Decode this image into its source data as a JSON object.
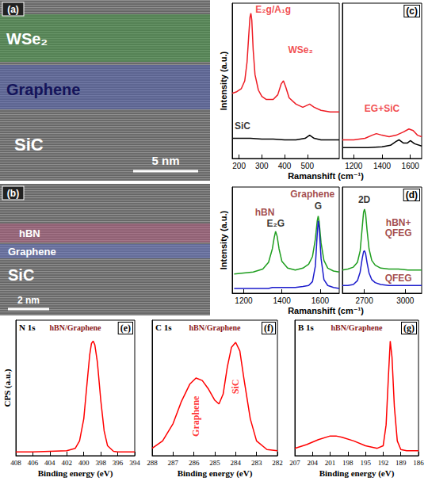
{
  "images": [
    {
      "panel": "(a)",
      "layers": [
        "WSe₂",
        "Graphene",
        "SiC"
      ],
      "scale_bar": "5 nm"
    },
    {
      "panel": "(b)",
      "layers": [
        "hBN",
        "Graphene",
        "SiC"
      ],
      "scale_bar": "2 nm"
    }
  ],
  "chart_data": [
    {
      "type": "line",
      "panel": "(c)",
      "xlabel": "Ramanshift (cm⁻¹)",
      "ylabel": "Intensity (a.u.)",
      "xlim": [
        [
          170,
          640
        ],
        [
          1120,
          1680
        ]
      ],
      "xticks": [
        [
          200,
          300,
          400,
          500
        ],
        [
          1200,
          1400,
          1600
        ]
      ],
      "ylim": [
        0,
        10
      ],
      "tick_labels": "x",
      "grid": false,
      "series": [
        {
          "color": "#ee1c24",
          "x": [
            170,
            190,
            210,
            225,
            235,
            242,
            248,
            252,
            256,
            262,
            270,
            285,
            300,
            320,
            350,
            370,
            385,
            395,
            405,
            420,
            450,
            480,
            510,
            530,
            560,
            600,
            640,
            1120,
            1200,
            1280,
            1330,
            1360,
            1400,
            1450,
            1500,
            1550,
            1590,
            1620,
            1650,
            1680
          ],
          "values": [
            4.2,
            4.3,
            4.5,
            5.0,
            6.2,
            7.8,
            9.1,
            9.35,
            8.9,
            7.0,
            5.4,
            4.4,
            4.0,
            3.8,
            3.8,
            4.1,
            4.8,
            5.0,
            4.6,
            3.9,
            3.5,
            3.3,
            3.5,
            3.3,
            3.1,
            3.0,
            3.0,
            1.2,
            1.2,
            1.3,
            1.5,
            1.6,
            1.5,
            1.4,
            1.5,
            1.7,
            1.9,
            1.8,
            1.5,
            1.4
          ]
        },
        {
          "color": "#000000",
          "x": [
            170,
            200,
            250,
            300,
            350,
            400,
            450,
            490,
            510,
            530,
            560,
            600,
            640,
            1120,
            1200,
            1300,
            1400,
            1460,
            1500,
            1520,
            1550,
            1580,
            1600,
            1630,
            1680
          ],
          "values": [
            1.3,
            1.3,
            1.3,
            1.25,
            1.25,
            1.2,
            1.2,
            1.3,
            1.5,
            1.3,
            1.2,
            1.2,
            1.2,
            0.7,
            0.7,
            0.7,
            0.75,
            0.85,
            1.1,
            1.2,
            1.0,
            1.0,
            1.15,
            0.95,
            0.8
          ]
        }
      ],
      "annotations": [
        {
          "text": "E₂g/A₁g",
          "x": 350,
          "y": 9.6,
          "color": "#ee1c24"
        },
        {
          "text": "WSe₂",
          "x": 470,
          "y": 7.0,
          "color": "#ee1c24"
        },
        {
          "text": "SiC",
          "x": 215,
          "y": 2.1,
          "color": "#000000"
        },
        {
          "text": "EG+SiC",
          "x": 1400,
          "y": 3.2,
          "color": "#ee1c24"
        }
      ]
    },
    {
      "type": "line",
      "panel": "(d)",
      "xlabel": "Ramanshift (cm⁻¹)",
      "ylabel": "Intensity (a.u.)",
      "xlim": [
        [
          1140,
          1700
        ],
        [
          2540,
          3120
        ]
      ],
      "xticks": [
        [
          1200,
          1400,
          1600
        ],
        [
          2700,
          3000
        ]
      ],
      "ylim": [
        0,
        11
      ],
      "tick_labels": "x",
      "grid": false,
      "series": [
        {
          "color": "#1f9e1f",
          "x": [
            1150,
            1200,
            1250,
            1300,
            1330,
            1350,
            1360,
            1367,
            1375,
            1385,
            1400,
            1430,
            1470,
            1510,
            1540,
            1560,
            1575,
            1585,
            1590,
            1595,
            1605,
            1620,
            1640,
            1670,
            1700,
            2540,
            2580,
            2620,
            2650,
            2670,
            2685,
            2695,
            2702,
            2710,
            2720,
            2735,
            2755,
            2780,
            2820,
            2880,
            2950,
            3020,
            3080,
            3120
          ],
          "values": [
            2.0,
            2.1,
            2.2,
            2.5,
            3.2,
            4.6,
            5.8,
            6.4,
            5.9,
            4.6,
            3.3,
            2.6,
            2.4,
            2.6,
            3.0,
            3.8,
            5.6,
            7.5,
            8.0,
            7.4,
            5.2,
            3.4,
            2.6,
            2.3,
            2.2,
            2.4,
            2.5,
            2.7,
            3.2,
            4.4,
            6.8,
            8.4,
            8.7,
            8.2,
            6.6,
            4.6,
            3.4,
            2.9,
            2.6,
            2.5,
            2.5,
            2.4,
            2.4,
            2.4
          ]
        },
        {
          "color": "#1c1ccc",
          "x": [
            1150,
            1200,
            1250,
            1300,
            1330,
            1350,
            1360,
            1367,
            1375,
            1385,
            1400,
            1430,
            1470,
            1510,
            1540,
            1560,
            1575,
            1585,
            1590,
            1595,
            1605,
            1620,
            1640,
            1670,
            1700,
            2540,
            2580,
            2620,
            2650,
            2670,
            2685,
            2695,
            2702,
            2710,
            2720,
            2735,
            2755,
            2780,
            2820,
            2880,
            2950,
            3020,
            3080,
            3120
          ],
          "values": [
            0.5,
            0.5,
            0.5,
            0.5,
            0.5,
            0.6,
            0.6,
            0.6,
            0.6,
            0.6,
            0.6,
            0.6,
            0.6,
            0.7,
            0.8,
            1.2,
            2.8,
            6.2,
            7.5,
            6.8,
            3.6,
            1.4,
            0.8,
            0.6,
            0.5,
            0.8,
            0.8,
            0.9,
            1.3,
            2.2,
            3.6,
            4.3,
            4.4,
            4.1,
            3.2,
            2.1,
            1.4,
            1.1,
            0.9,
            0.8,
            0.8,
            0.8,
            0.8,
            0.8
          ]
        }
      ],
      "annotations": [
        {
          "text": "hBN",
          "x": 1310,
          "y": 8.4,
          "color": "#8b1a1a"
        },
        {
          "text": "E₂G",
          "x": 1367,
          "y": 7.2,
          "color": "#000000"
        },
        {
          "text": "Graphene",
          "x": 1560,
          "y": 10.3,
          "color": "#8b1a1a"
        },
        {
          "text": "G",
          "x": 1590,
          "y": 9.0,
          "color": "#000000"
        },
        {
          "text": "2D",
          "x": 2700,
          "y": 9.7,
          "color": "#000000"
        },
        {
          "text": "hBN+",
          "x": 2950,
          "y": 7.3,
          "color": "#8b1a1a"
        },
        {
          "text": "QFEG",
          "x": 2950,
          "y": 6.2,
          "color": "#8b1a1a"
        },
        {
          "text": "QFEG",
          "x": 2950,
          "y": 1.55,
          "color": "#8b1a1a"
        }
      ]
    },
    {
      "type": "line",
      "panel": "(e)",
      "title": "N 1s",
      "subtitle": "hBN/Graphene",
      "xlabel": "Binding energy (eV)",
      "ylabel": "CPS (a.u.)",
      "xlim": [
        408,
        394
      ],
      "xticks": [
        408,
        406,
        404,
        402,
        400,
        398,
        396,
        394
      ],
      "ylim": [
        0,
        11
      ],
      "tick_labels": "x",
      "grid": false,
      "series": [
        {
          "color": "#ff0000",
          "x": [
            408,
            406,
            404,
            402,
            401,
            400.5,
            400,
            399.6,
            399.3,
            399.1,
            398.9,
            398.7,
            398.4,
            398,
            397.6,
            397.2,
            396.5,
            396,
            394
          ],
          "values": [
            0.3,
            0.3,
            0.35,
            0.4,
            0.6,
            1.2,
            3.0,
            6.0,
            8.2,
            9.1,
            9.3,
            9.0,
            7.6,
            4.5,
            2.0,
            0.8,
            0.35,
            0.3,
            0.3
          ]
        }
      ]
    },
    {
      "type": "line",
      "panel": "(f)",
      "title": "C 1s",
      "subtitle": "hBN/Graphene",
      "xlabel": "Binding energy (eV)",
      "xlim": [
        288,
        282
      ],
      "xticks": [
        288,
        287,
        286,
        285,
        284,
        283,
        282
      ],
      "ylim": [
        0,
        11
      ],
      "tick_labels": "x",
      "grid": false,
      "series": [
        {
          "color": "#ff0000",
          "x": [
            288,
            287.5,
            287,
            286.6,
            286.2,
            285.9,
            285.6,
            285.3,
            285,
            284.8,
            284.6,
            284.4,
            284.2,
            284.0,
            283.8,
            283.6,
            283.3,
            283,
            282.5,
            282
          ],
          "values": [
            0.6,
            1.2,
            2.6,
            4.4,
            5.8,
            6.3,
            6.1,
            5.4,
            4.5,
            4.2,
            5.0,
            7.2,
            8.8,
            9.2,
            8.5,
            6.2,
            3.0,
            1.2,
            0.5,
            0.4
          ]
        }
      ],
      "annotations": [
        {
          "text": "Graphene",
          "x": 285.9,
          "y": 3.2,
          "color": "#ff0000",
          "orientation": "vertical"
        },
        {
          "text": "SiC",
          "x": 284.0,
          "y": 5.6,
          "color": "#ff0000",
          "orientation": "vertical"
        }
      ]
    },
    {
      "type": "line",
      "panel": "(g)",
      "title": "B 1s",
      "subtitle": "hBN/Graphene",
      "xlabel": "Binding energy (eV)",
      "xlim": [
        207,
        186
      ],
      "xticks": [
        207,
        204,
        201,
        198,
        195,
        192,
        189,
        186
      ],
      "ylim": [
        0,
        11
      ],
      "tick_labels": "x",
      "grid": false,
      "series": [
        {
          "color": "#ff0000",
          "x": [
            207,
            205,
            203,
            201,
            200,
            199,
            197,
            195,
            193,
            192,
            191.5,
            191.1,
            190.8,
            190.5,
            190.1,
            189.6,
            189,
            188,
            186
          ],
          "values": [
            0.6,
            0.9,
            1.3,
            1.6,
            1.6,
            1.5,
            1.2,
            0.8,
            0.6,
            0.8,
            2.5,
            6.5,
            9.3,
            8.0,
            4.0,
            1.2,
            0.5,
            0.4,
            0.4
          ]
        }
      ]
    }
  ]
}
